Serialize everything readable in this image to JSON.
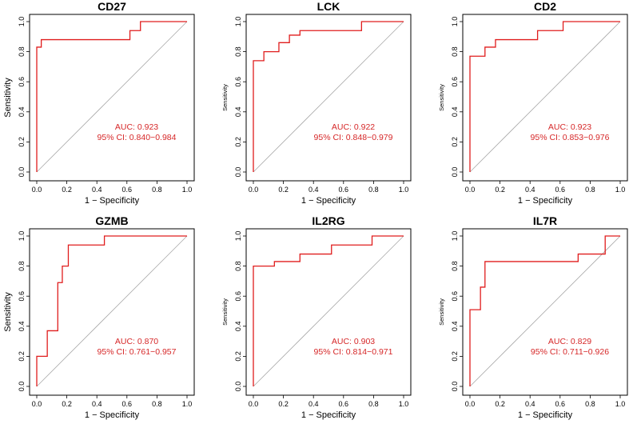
{
  "chart_data": [
    {
      "type": "line",
      "title": "CD27",
      "xlabel": "1 − Specificity",
      "ylabel": "Sensitivity",
      "xlim": [
        0,
        1
      ],
      "ylim": [
        0,
        1
      ],
      "ticks": [
        "0.0",
        "0.2",
        "0.4",
        "0.6",
        "0.8",
        "1.0"
      ],
      "auc_text": "AUC: 0.923",
      "ci_text": "95% CI: 0.840−0.984",
      "series": [
        {
          "name": "ROC",
          "x": [
            0,
            0,
            0.03,
            0.03,
            0.62,
            0.62,
            0.69,
            0.69,
            1.0
          ],
          "y": [
            0,
            0.83,
            0.83,
            0.88,
            0.88,
            0.94,
            0.94,
            1.0,
            1.0
          ]
        }
      ]
    },
    {
      "type": "line",
      "title": "LCK",
      "xlabel": "1 − Specificity",
      "ylabel": "Sensitivity",
      "xlim": [
        0,
        1
      ],
      "ylim": [
        0,
        1
      ],
      "ticks": [
        "0.0",
        "0.2",
        "0.4",
        "0.6",
        "0.8",
        "1.0"
      ],
      "auc_text": "AUC: 0.922",
      "ci_text": "95% CI: 0.848−0.979",
      "series": [
        {
          "name": "ROC",
          "x": [
            0,
            0,
            0.07,
            0.07,
            0.17,
            0.17,
            0.24,
            0.24,
            0.31,
            0.31,
            0.72,
            0.72,
            1.0
          ],
          "y": [
            0,
            0.74,
            0.74,
            0.8,
            0.8,
            0.86,
            0.86,
            0.91,
            0.91,
            0.94,
            0.94,
            1.0,
            1.0
          ]
        }
      ]
    },
    {
      "type": "line",
      "title": "CD2",
      "xlabel": "1 − Specificity",
      "ylabel": "Sensitivity",
      "xlim": [
        0,
        1
      ],
      "ylim": [
        0,
        1
      ],
      "ticks": [
        "0.0",
        "0.2",
        "0.4",
        "0.6",
        "0.8",
        "1.0"
      ],
      "auc_text": "AUC: 0.923",
      "ci_text": "95% CI: 0.853−0.976",
      "series": [
        {
          "name": "ROC",
          "x": [
            0,
            0,
            0.1,
            0.1,
            0.17,
            0.17,
            0.45,
            0.45,
            0.62,
            0.62,
            1.0
          ],
          "y": [
            0,
            0.77,
            0.77,
            0.83,
            0.83,
            0.88,
            0.88,
            0.94,
            0.94,
            1.0,
            1.0
          ]
        }
      ]
    },
    {
      "type": "line",
      "title": "GZMB",
      "xlabel": "1 − Specificity",
      "ylabel": "Sensitivity",
      "xlim": [
        0,
        1
      ],
      "ylim": [
        0,
        1
      ],
      "ticks": [
        "0.0",
        "0.2",
        "0.4",
        "0.6",
        "0.8",
        "1.0"
      ],
      "auc_text": "AUC: 0.870",
      "ci_text": "95% CI: 0.761−0.957",
      "series": [
        {
          "name": "ROC",
          "x": [
            0,
            0,
            0.07,
            0.07,
            0.14,
            0.14,
            0.17,
            0.17,
            0.21,
            0.21,
            0.45,
            0.45,
            1.0
          ],
          "y": [
            0,
            0.2,
            0.2,
            0.37,
            0.37,
            0.69,
            0.69,
            0.8,
            0.8,
            0.94,
            0.94,
            1.0,
            1.0
          ]
        }
      ]
    },
    {
      "type": "line",
      "title": "IL2RG",
      "xlabel": "1 − Specificity",
      "ylabel": "Sensitivity",
      "xlim": [
        0,
        1
      ],
      "ylim": [
        0,
        1
      ],
      "ticks": [
        "0.0",
        "0.2",
        "0.4",
        "0.6",
        "0.8",
        "1.0"
      ],
      "auc_text": "AUC: 0.903",
      "ci_text": "95% CI: 0.814−0.971",
      "series": [
        {
          "name": "ROC",
          "x": [
            0,
            0,
            0.14,
            0.14,
            0.31,
            0.31,
            0.52,
            0.52,
            0.79,
            0.79,
            1.0
          ],
          "y": [
            0,
            0.8,
            0.8,
            0.83,
            0.83,
            0.88,
            0.88,
            0.94,
            0.94,
            1.0,
            1.0
          ]
        }
      ]
    },
    {
      "type": "line",
      "title": "IL7R",
      "xlabel": "1 − Specificity",
      "ylabel": "Sensitivity",
      "xlim": [
        0,
        1
      ],
      "ylim": [
        0,
        1
      ],
      "ticks": [
        "0.0",
        "0.2",
        "0.4",
        "0.6",
        "0.8",
        "1.0"
      ],
      "auc_text": "AUC: 0.829",
      "ci_text": "95% CI: 0.711−0.926",
      "series": [
        {
          "name": "ROC",
          "x": [
            0,
            0,
            0.07,
            0.07,
            0.1,
            0.1,
            0.72,
            0.72,
            0.9,
            0.9,
            1.0
          ],
          "y": [
            0,
            0.51,
            0.51,
            0.66,
            0.66,
            0.83,
            0.83,
            0.88,
            0.88,
            1.0,
            1.0
          ]
        }
      ]
    }
  ]
}
